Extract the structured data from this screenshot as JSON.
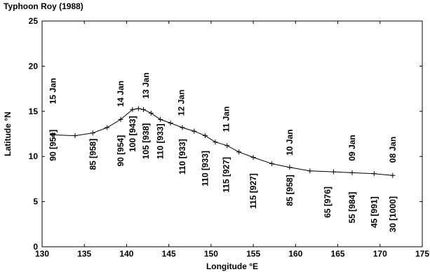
{
  "chart_data": {
    "type": "line",
    "title": "Typhoon Roy (1988)",
    "xlabel": "Longitude °E",
    "ylabel": "Latitude °N",
    "xlim": [
      130,
      175
    ],
    "ylim": [
      0,
      25
    ],
    "xticks": [
      "130",
      "135",
      "140",
      "145",
      "150",
      "155",
      "160",
      "165",
      "170",
      "175"
    ],
    "yticks": [
      "0",
      "5",
      "10",
      "15",
      "20",
      "25"
    ],
    "grid": false,
    "series": [
      {
        "x": [
          171.5,
          169.3,
          166.7,
          164.5,
          161.7,
          159.3,
          157.2,
          155.0,
          153.3,
          151.9,
          150.5,
          149.3,
          148.0,
          146.6,
          145.2,
          144.0,
          142.9,
          142.0,
          141.4,
          140.7,
          139.3,
          137.7,
          136.0,
          133.9,
          131.2
        ],
        "y": [
          7.9,
          8.1,
          8.2,
          8.3,
          8.4,
          8.8,
          9.2,
          9.9,
          10.5,
          11.2,
          11.6,
          12.3,
          12.8,
          13.2,
          13.7,
          14.1,
          14.8,
          15.2,
          15.3,
          15.2,
          14.1,
          13.2,
          12.6,
          12.3,
          12.4
        ]
      }
    ],
    "date_labels": [
      {
        "text": "15 Jan",
        "x": 131.3,
        "y": 15.8
      },
      {
        "text": "14 Jan",
        "x": 139.3,
        "y": 15.5
      },
      {
        "text": "13 Jan",
        "x": 142.3,
        "y": 16.4
      },
      {
        "text": "12 Jan",
        "x": 146.5,
        "y": 14.5
      },
      {
        "text": "11 Jan",
        "x": 151.8,
        "y": 12.7
      },
      {
        "text": "10 Jan",
        "x": 159.3,
        "y": 10.1
      },
      {
        "text": "09 Jan",
        "x": 166.7,
        "y": 9.5
      },
      {
        "text": "08 Jan",
        "x": 171.5,
        "y": 9.3
      }
    ],
    "intensity_labels": [
      {
        "text": "90 [954]",
        "x": 131.3,
        "y": 9.5
      },
      {
        "text": "85 [958]",
        "x": 136.0,
        "y": 8.5
      },
      {
        "text": "90 [954]",
        "x": 139.3,
        "y": 8.9
      },
      {
        "text": "100 [943]",
        "x": 140.7,
        "y": 10.5
      },
      {
        "text": "105 [938]",
        "x": 142.3,
        "y": 9.7
      },
      {
        "text": "110 [933]",
        "x": 144.0,
        "y": 9.7
      },
      {
        "text": "110 [933]",
        "x": 146.6,
        "y": 8.0
      },
      {
        "text": "110 [933]",
        "x": 149.3,
        "y": 6.7
      },
      {
        "text": "115 [927]",
        "x": 151.8,
        "y": 6.0
      },
      {
        "text": "115 [927]",
        "x": 155.0,
        "y": 4.2
      },
      {
        "text": "85 [958]",
        "x": 159.3,
        "y": 4.5
      },
      {
        "text": "65 [976]",
        "x": 163.8,
        "y": 3.2
      },
      {
        "text": "55 [984]",
        "x": 166.7,
        "y": 2.6
      },
      {
        "text": "45 [991]",
        "x": 169.3,
        "y": 2.1
      },
      {
        "text": "30 [1000]",
        "x": 171.5,
        "y": 1.6
      }
    ]
  }
}
